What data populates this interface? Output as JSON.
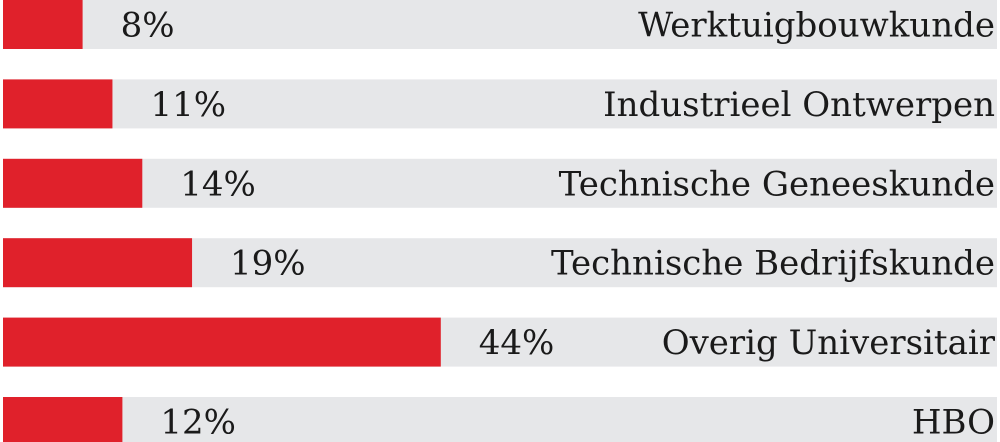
{
  "chart_data": {
    "type": "bar",
    "orientation": "horizontal",
    "categories": [
      "Werktuigbouwkunde",
      "Industrieel Ontwerpen",
      "Technische Geneeskunde",
      "Technische Bedrijfskunde",
      "Overig Universitair",
      "HBO"
    ],
    "values": [
      8,
      11,
      14,
      19,
      44,
      12
    ],
    "value_labels": [
      "8%",
      "11%",
      "14%",
      "19%",
      "44%",
      "12%"
    ],
    "unit": "%",
    "xlim": [
      0,
      100
    ],
    "title": "",
    "xlabel": "",
    "ylabel": "",
    "grid": false,
    "legend": "none",
    "colors": {
      "bar": "#e0212b",
      "track": "#e6e7e9",
      "text": "#1a1a1a"
    }
  }
}
